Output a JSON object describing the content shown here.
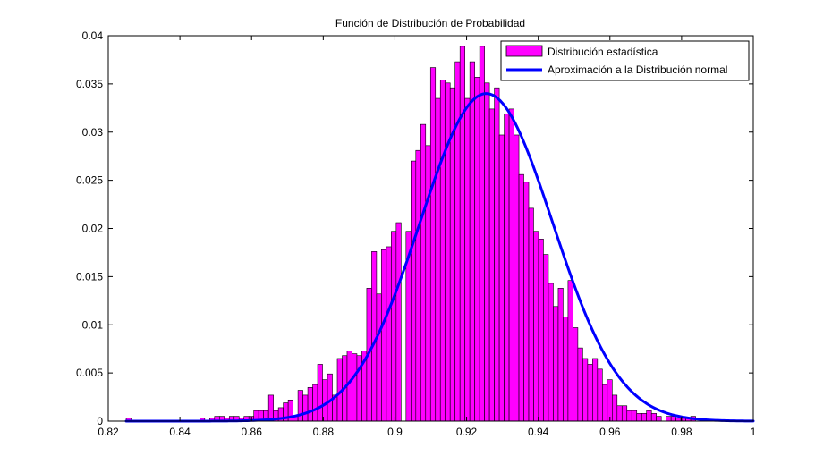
{
  "chart_data": {
    "type": "bar",
    "title": "Función de Distribución de Probabilidad",
    "xlabel": "",
    "ylabel": "",
    "xlim": [
      0.82,
      1.0
    ],
    "ylim": [
      0,
      0.04
    ],
    "x_ticks": [
      "0.82",
      "0.84",
      "0.86",
      "0.88",
      "0.9",
      "0.92",
      "0.94",
      "0.96",
      "0.98",
      "1"
    ],
    "y_ticks": [
      "0",
      "0.005",
      "0.01",
      "0.015",
      "0.02",
      "0.025",
      "0.03",
      "0.035",
      "0.04"
    ],
    "x_tick_values": [
      0.82,
      0.84,
      0.86,
      0.88,
      0.9,
      0.92,
      0.94,
      0.96,
      0.98,
      1.0
    ],
    "y_tick_values": [
      0,
      0.005,
      0.01,
      0.015,
      0.02,
      0.025,
      0.03,
      0.035,
      0.04
    ],
    "grid": false,
    "legend_position": "top-right",
    "series": [
      {
        "name": "Distribución estadística",
        "kind": "bar",
        "color": "#ff00ff",
        "bin_start": 0.825,
        "bin_width": 0.00137,
        "values": [
          0.0003,
          0,
          0,
          0,
          0,
          0,
          0,
          0,
          0,
          0,
          0,
          0,
          0,
          0,
          0,
          0.0003,
          0,
          0.0003,
          0.0005,
          0.0005,
          0.0003,
          0.0005,
          0.0005,
          0.0003,
          0.0005,
          0.0005,
          0.0011,
          0.0011,
          0.0011,
          0.0027,
          0.0011,
          0.0014,
          0.0019,
          0.0022,
          0.0005,
          0.0032,
          0.0027,
          0.0035,
          0.0038,
          0.0059,
          0.0043,
          0.0049,
          0.0027,
          0.0065,
          0.0068,
          0.0073,
          0.007,
          0.0068,
          0.0073,
          0.0138,
          0.0176,
          0.0132,
          0.0178,
          0.0181,
          0.0197,
          0.0206,
          0,
          0.0197,
          0.027,
          0.0281,
          0.0308,
          0.0286,
          0.0367,
          0.0335,
          0.0354,
          0.0351,
          0.0346,
          0.0373,
          0.0389,
          0.0335,
          0.0373,
          0.0357,
          0.0389,
          0.0351,
          0.0324,
          0.0346,
          0.0297,
          0.0319,
          0.0324,
          0.0297,
          0.0256,
          0.0248,
          0.0221,
          0.0197,
          0.0189,
          0.0173,
          0.0143,
          0.0119,
          0.0138,
          0.0108,
          0.0146,
          0.0097,
          0.0076,
          0.0065,
          0.0059,
          0.0065,
          0.0054,
          0.0038,
          0.0043,
          0.0027,
          0.0016,
          0.0016,
          0.0011,
          0.0011,
          0.0008,
          0.0008,
          0.0011,
          0.0008,
          0.0005,
          0,
          0.0005,
          0.0005,
          0.0003,
          0.0003,
          0.0003,
          0.0005
        ]
      },
      {
        "name": "Aproximación a la Distribución normal",
        "kind": "line",
        "color": "#0000ff",
        "distribution": "normal",
        "mean": 0.9255,
        "std": 0.0185,
        "peak": 0.034,
        "x_range": [
          0.825,
          1.0
        ]
      }
    ]
  }
}
